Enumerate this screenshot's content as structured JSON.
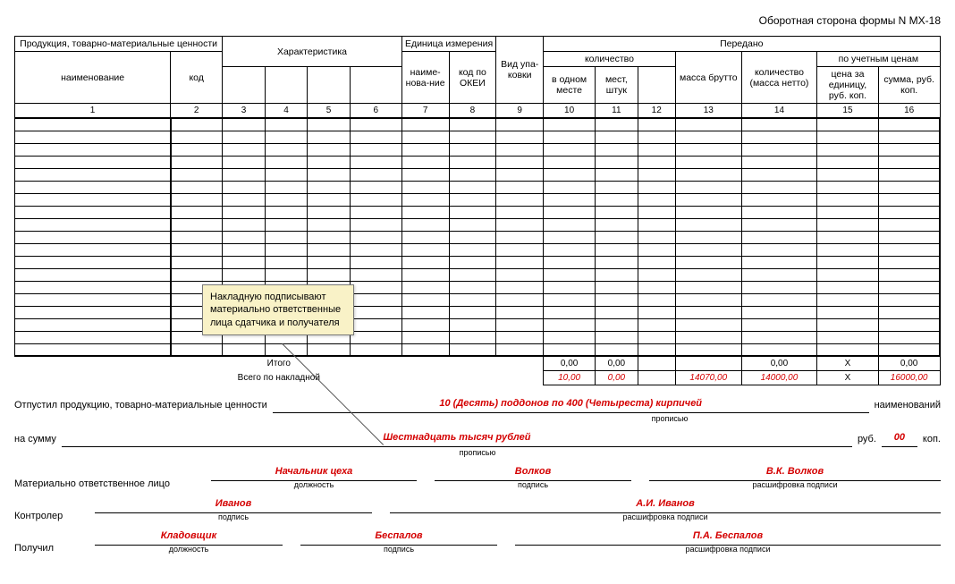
{
  "page_title": "Оборотная сторона формы N МХ-18",
  "headers": {
    "product": "Продукция, товарно-материальные ценности",
    "name": "наименование",
    "code": "код",
    "characteristic": "Характеристика",
    "unit": "Единица измерения",
    "unit_name": "наиме-нова-ние",
    "unit_code": "код по ОКЕИ",
    "pack_type": "Вид упа-ковки",
    "transferred": "Передано",
    "quantity": "количество",
    "in_one_place": "в одном месте",
    "places": "мест, штук",
    "mass_gross": "масса брутто",
    "qty_net": "количество (масса нетто)",
    "by_price": "по учетным ценам",
    "price_per_unit": "цена за единицу, руб. коп.",
    "sum": "сумма, руб. коп."
  },
  "colnums": [
    "1",
    "2",
    "3",
    "4",
    "5",
    "6",
    "7",
    "8",
    "9",
    "10",
    "11",
    "12",
    "13",
    "14",
    "15",
    "16"
  ],
  "empty_rows": 19,
  "totals": {
    "itogo_label": "Итого",
    "itogo": [
      "0,00",
      "0,00",
      "",
      "",
      "0,00",
      "Х",
      "0,00"
    ],
    "vsego_label": "Всего по накладной",
    "vsego": [
      "10,00",
      "0,00",
      "",
      "14070,00",
      "14000,00",
      "Х",
      "16000,00"
    ]
  },
  "footer": {
    "released_label": "Отпустил продукцию, товарно-материальные ценности",
    "released_value": "10 (Десять) поддонов по 400 (Четыреста) кирпичей",
    "names_label": "наименований",
    "propis": "прописью",
    "sum_label": "на сумму",
    "sum_value": "Шестнадцать тысяч рублей",
    "rub": "руб.",
    "kop_value": "00",
    "kop": "коп.",
    "mol_label": "Материально ответственное лицо",
    "position": "должность",
    "signature": "подпись",
    "decipher": "расшифровка подписи",
    "mol_position": "Начальник цеха",
    "mol_sign": "Волков",
    "mol_decipher": "В.К. Волков",
    "controller_label": "Контролер",
    "controller_sign": "Иванов",
    "controller_decipher": "А.И. Иванов",
    "received_label": "Получил",
    "received_position": "Кладовщик",
    "received_sign": "Беспалов",
    "received_decipher": "П.А. Беспалов"
  },
  "tooltip": "Накладную подписывают материально ответственные лица сдатчика и получателя"
}
